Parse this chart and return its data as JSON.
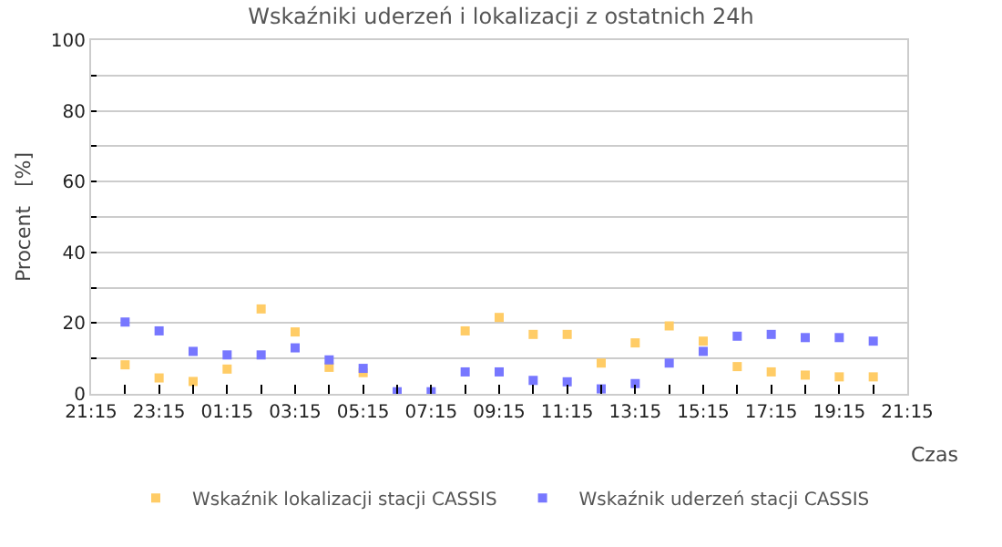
{
  "chart_data": {
    "type": "scatter",
    "title": "Wskaźniki uderzeń i lokalizacji z ostatnich 24h",
    "xlabel": "Czas",
    "ylabel": "Procent   [%]",
    "x": [
      "--01-01T22:15",
      "--01-01T23:15",
      "--01-02T00:15",
      "--01-02T01:15",
      "--01-02T02:15",
      "--01-02T03:15",
      "--01-02T04:15",
      "--01-02T05:15",
      "--01-02T06:15",
      "--01-02T07:15",
      "--01-02T08:15",
      "--01-02T09:15",
      "--01-02T10:15",
      "--01-02T11:15",
      "--01-02T12:15",
      "--01-02T13:15",
      "--01-02T14:15",
      "--01-02T15:15",
      "--01-02T16:15",
      "--01-02T17:15",
      "--01-02T18:15",
      "--01-02T19:15",
      "--01-02T20:15"
    ],
    "series": [
      {
        "name": "Wskaźnik lokalizacji stacji CASSIS",
        "color": "#ffcc66",
        "values": [
          8.2,
          4.5,
          3.5,
          7,
          24,
          17.5,
          7.5,
          6,
          null,
          null,
          17.8,
          21.6,
          16.8,
          16.8,
          8.7,
          14.4,
          19.2,
          14.9,
          7.7,
          6.2,
          5.3,
          4.8,
          4.8
        ]
      },
      {
        "name": "Wskaźnik uderzeń stacji CASSIS",
        "color": "#7777ff",
        "values": [
          20.3,
          17.8,
          12,
          11,
          11,
          13,
          9.6,
          7.2,
          0.6,
          0.6,
          6.2,
          6.2,
          3.8,
          3.4,
          1.4,
          2.9,
          8.7,
          12,
          16.3,
          16.8,
          15.9,
          15.9,
          14.9
        ]
      }
    ],
    "xlim": [
      "--01-01T21:15",
      "--01-02T21:15"
    ],
    "xticks": [
      {
        "value": "--01-01T21:15",
        "label": "21:15"
      },
      {
        "value": "--01-01T22:15",
        "label": null
      },
      {
        "value": "--01-01T23:15",
        "label": "23:15"
      },
      {
        "value": "--01-02T00:15",
        "label": null
      },
      {
        "value": "--01-02T01:15",
        "label": "01:15"
      },
      {
        "value": "--01-02T02:15",
        "label": null
      },
      {
        "value": "--01-02T03:15",
        "label": "03:15"
      },
      {
        "value": "--01-02T04:15",
        "label": null
      },
      {
        "value": "--01-02T05:15",
        "label": "05:15"
      },
      {
        "value": "--01-02T06:15",
        "label": null
      },
      {
        "value": "--01-02T07:15",
        "label": "07:15"
      },
      {
        "value": "--01-02T08:15",
        "label": null
      },
      {
        "value": "--01-02T09:15",
        "label": "09:15"
      },
      {
        "value": "--01-02T10:15",
        "label": null
      },
      {
        "value": "--01-02T11:15",
        "label": "11:15"
      },
      {
        "value": "--01-02T12:15",
        "label": null
      },
      {
        "value": "--01-02T13:15",
        "label": "13:15"
      },
      {
        "value": "--01-02T14:15",
        "label": null
      },
      {
        "value": "--01-02T15:15",
        "label": "15:15"
      },
      {
        "value": "--01-02T16:15",
        "label": null
      },
      {
        "value": "--01-02T17:15",
        "label": "17:15"
      },
      {
        "value": "--01-02T18:15",
        "label": null
      },
      {
        "value": "--01-02T19:15",
        "label": "19:15"
      },
      {
        "value": "--01-02T20:15",
        "label": null
      },
      {
        "value": "--01-02T21:15",
        "label": "21:15"
      }
    ],
    "ylim": [
      0,
      100
    ],
    "yticks": [
      0,
      {
        "value": 10,
        "label": null
      },
      20,
      {
        "value": 30,
        "label": null
      },
      40,
      {
        "value": 50,
        "label": null
      },
      60,
      {
        "value": 70,
        "label": null
      },
      80,
      {
        "value": 90,
        "label": null
      },
      100
    ],
    "grid": "y",
    "legend": "bottom",
    "marker": "square"
  }
}
